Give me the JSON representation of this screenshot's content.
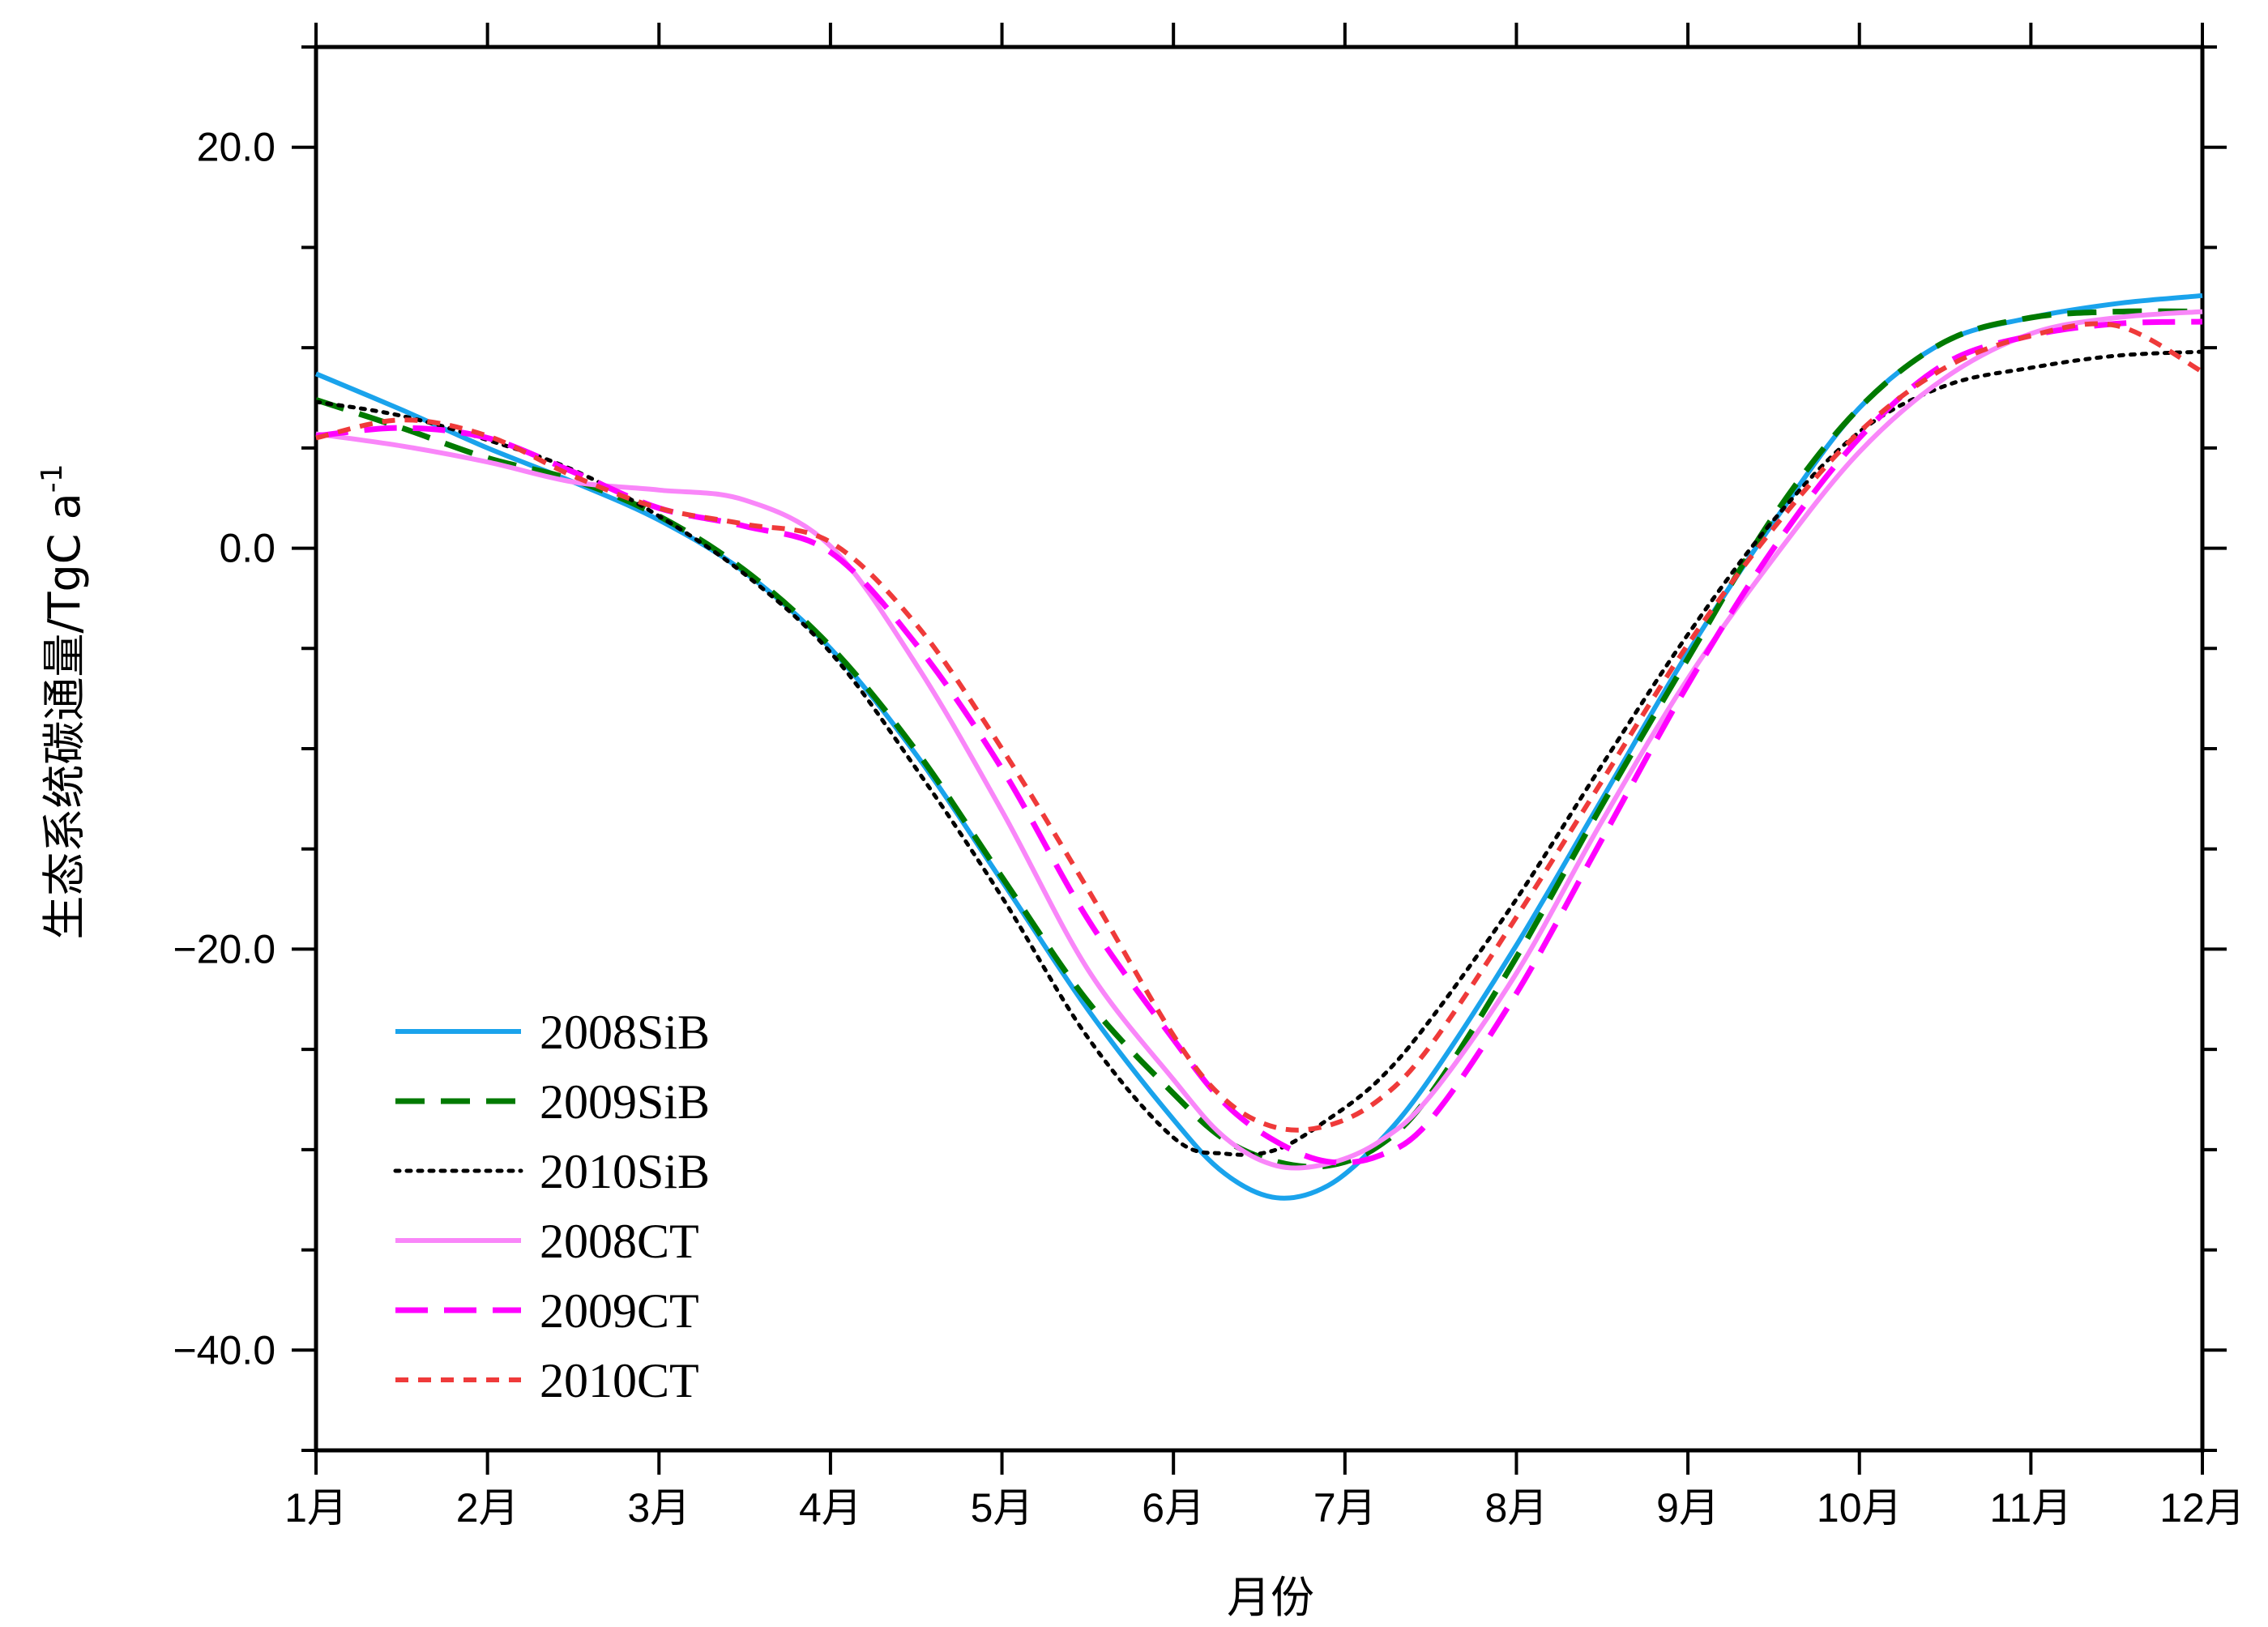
{
  "chart_data": {
    "type": "line",
    "title": "",
    "xlabel": "月份",
    "ylabel": "生态系统碳通量/TgC a",
    "ylabel_superscript": "-1",
    "x_tick_labels": [
      "1月",
      "2月",
      "3月",
      "4月",
      "5月",
      "6月",
      "7月",
      "8月",
      "9月",
      "10月",
      "11月",
      "12月"
    ],
    "y_tick_labels": [
      "20.0",
      "0.0",
      "−20.0",
      "−40.0"
    ],
    "y_ticks": [
      20,
      0,
      -20,
      -40
    ],
    "xlim": [
      1,
      12
    ],
    "ylim": [
      -45,
      25
    ],
    "grid": false,
    "legend_position": "bottom-left",
    "series": [
      {
        "name": "2008SiB",
        "color": "#1aa3ec",
        "dash": "solid",
        "x": [
          1,
          1.5,
          2,
          2.5,
          3,
          3.5,
          4,
          4.5,
          5,
          5.5,
          6,
          6.3,
          6.6,
          6.9,
          7.2,
          7.5,
          8,
          8.5,
          9,
          9.5,
          10,
          10.5,
          11,
          11.5,
          12
        ],
        "y": [
          8.7,
          6.9,
          5.0,
          3.3,
          1.4,
          -1.2,
          -5.0,
          -10.3,
          -16.6,
          -23.0,
          -28.5,
          -31.2,
          -32.4,
          -31.8,
          -29.6,
          -26.4,
          -19.8,
          -12.5,
          -5.2,
          1.3,
          7.0,
          10.3,
          11.5,
          12.2,
          12.6
        ]
      },
      {
        "name": "2009SiB",
        "color": "#007a00",
        "dash": "dashed",
        "x": [
          1,
          1.5,
          2,
          2.5,
          3,
          3.5,
          4,
          4.5,
          5,
          5.5,
          6,
          6.3,
          6.6,
          6.9,
          7.2,
          7.5,
          8,
          8.5,
          9,
          9.5,
          10,
          10.5,
          11,
          11.5,
          12
        ],
        "y": [
          7.4,
          6.0,
          4.5,
          3.4,
          1.6,
          -1.1,
          -4.9,
          -10.1,
          -16.4,
          -22.6,
          -27.2,
          -29.5,
          -30.6,
          -30.8,
          -29.8,
          -27.2,
          -20.4,
          -12.8,
          -5.5,
          1.6,
          7.0,
          10.3,
          11.5,
          11.8,
          11.8
        ]
      },
      {
        "name": "2010SiB",
        "color": "#000000",
        "dash": "dotted",
        "x": [
          1,
          1.5,
          2,
          2.5,
          3,
          3.5,
          4,
          4.5,
          5,
          5.5,
          6,
          6.3,
          6.6,
          6.9,
          7.2,
          7.5,
          8,
          8.5,
          9,
          9.5,
          10,
          10.5,
          11,
          11.5,
          12
        ],
        "y": [
          7.3,
          6.6,
          5.4,
          3.9,
          1.6,
          -1.3,
          -5.2,
          -11.0,
          -17.4,
          -24.4,
          -29.4,
          -30.2,
          -30.0,
          -28.5,
          -26.5,
          -23.5,
          -17.5,
          -10.8,
          -4.3,
          1.4,
          5.8,
          8.1,
          9.0,
          9.6,
          9.8
        ]
      },
      {
        "name": "2008CT",
        "color": "#f986f9",
        "dash": "solid",
        "x": [
          1,
          1.5,
          2,
          2.5,
          3,
          3.5,
          4,
          4.5,
          5,
          5.5,
          6,
          6.3,
          6.6,
          6.9,
          7.2,
          7.5,
          8,
          8.5,
          9,
          9.5,
          10,
          10.5,
          11,
          11.5,
          12
        ],
        "y": [
          5.7,
          5.1,
          4.3,
          3.3,
          2.9,
          2.4,
          0.1,
          -5.8,
          -13.1,
          -21.0,
          -26.5,
          -29.4,
          -30.8,
          -30.7,
          -29.6,
          -27.3,
          -21.2,
          -13.6,
          -6.5,
          -0.5,
          4.8,
          8.5,
          10.7,
          11.5,
          11.8
        ]
      },
      {
        "name": "2009CT",
        "color": "#ff00ff",
        "dash": "longdash",
        "x": [
          1,
          1.5,
          2,
          2.5,
          3,
          3.5,
          4,
          4.5,
          5,
          5.5,
          6,
          6.3,
          6.6,
          6.9,
          7.2,
          7.5,
          8,
          8.5,
          9,
          9.5,
          10,
          10.5,
          11,
          11.5,
          12
        ],
        "y": [
          5.6,
          6.0,
          5.5,
          3.8,
          2.0,
          1.1,
          -0.2,
          -4.8,
          -11.0,
          -18.5,
          -24.5,
          -27.7,
          -29.6,
          -30.6,
          -30.3,
          -28.5,
          -22.2,
          -14.5,
          -6.8,
          0.0,
          5.5,
          9.2,
          10.6,
          11.2,
          11.3
        ]
      },
      {
        "name": "2010CT",
        "color": "#ef3a3a",
        "dash": "shortdash",
        "x": [
          1,
          1.5,
          2,
          2.5,
          3,
          3.5,
          4,
          4.5,
          5,
          5.5,
          6,
          6.3,
          6.6,
          6.9,
          7.2,
          7.5,
          8,
          8.5,
          9,
          9.5,
          10,
          10.5,
          11,
          11.5,
          12
        ],
        "y": [
          5.5,
          6.4,
          5.6,
          3.6,
          2.0,
          1.2,
          0.3,
          -3.8,
          -10.0,
          -17.0,
          -24.3,
          -27.5,
          -28.9,
          -28.8,
          -27.5,
          -24.8,
          -18.4,
          -11.6,
          -4.8,
          1.0,
          5.8,
          9.0,
          10.6,
          11.1,
          8.8
        ]
      }
    ]
  }
}
